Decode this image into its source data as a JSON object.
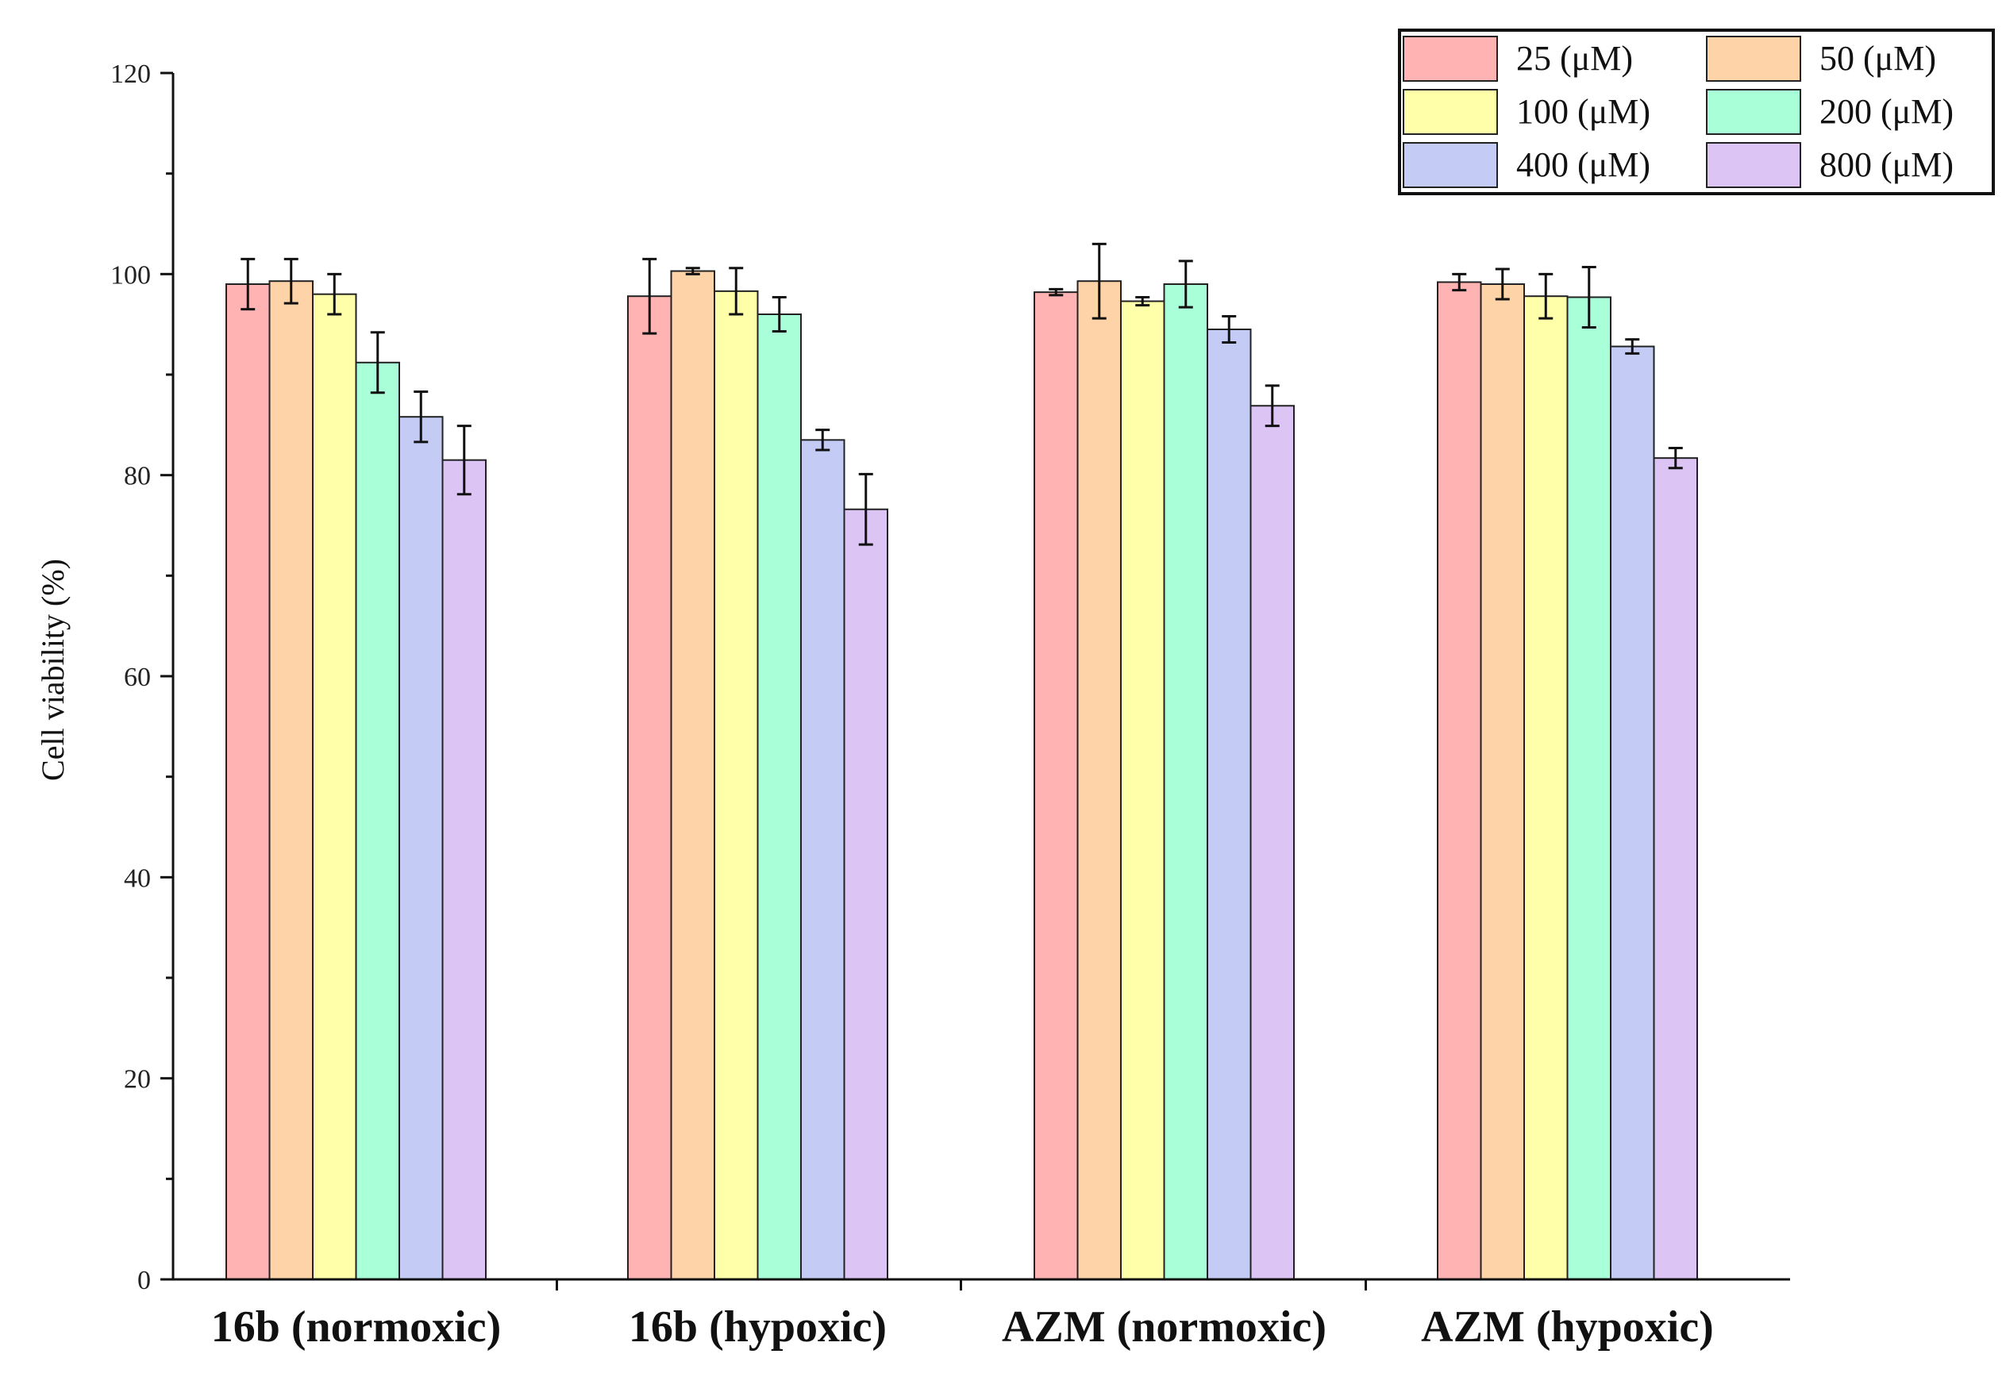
{
  "chart_data": {
    "type": "bar",
    "title": "",
    "xlabel": "",
    "ylabel": "Cell viability (%)",
    "ylim": [
      0,
      120
    ],
    "yticks": [
      0,
      20,
      40,
      60,
      80,
      100,
      120
    ],
    "grid": false,
    "legend_position": "top-right",
    "categories": [
      "16b (normoxic)",
      "16b (hypoxic)",
      "AZM (normoxic)",
      "AZM (hypoxic)"
    ],
    "series": [
      {
        "name": "25  (μM)",
        "color": "#FFB3B3",
        "values": [
          99.0,
          97.8,
          98.2,
          99.2
        ],
        "errors": [
          2.5,
          3.7,
          0.3,
          0.8
        ]
      },
      {
        "name": "50 (μM)",
        "color": "#FFD3A8",
        "values": [
          99.3,
          100.3,
          99.3,
          99.0
        ],
        "errors": [
          2.2,
          0.3,
          3.7,
          1.5
        ]
      },
      {
        "name": "100 (μM)",
        "color": "#FFFFAA",
        "values": [
          98.0,
          98.3,
          97.3,
          97.8
        ],
        "errors": [
          2.0,
          2.3,
          0.4,
          2.2
        ]
      },
      {
        "name": "200 (μM)",
        "color": "#A8FFD8",
        "values": [
          91.2,
          96.0,
          99.0,
          97.7
        ],
        "errors": [
          3.0,
          1.7,
          2.3,
          3.0
        ]
      },
      {
        "name": "400 (μM)",
        "color": "#C4CCF5",
        "values": [
          85.8,
          83.5,
          94.5,
          92.8
        ],
        "errors": [
          2.5,
          1.0,
          1.3,
          0.7
        ]
      },
      {
        "name": "800 (μM)",
        "color": "#DCC4F5",
        "values": [
          81.5,
          76.6,
          86.9,
          81.7
        ],
        "errors": [
          3.4,
          3.5,
          2.0,
          1.0
        ]
      }
    ]
  }
}
